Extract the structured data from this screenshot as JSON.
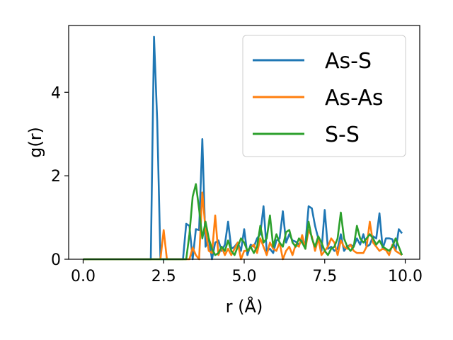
{
  "chart_data": {
    "type": "line",
    "xlabel": "r (Å)",
    "ylabel": "g(r)",
    "xlim": [
      -0.45,
      10.45
    ],
    "ylim": [
      0,
      5.6
    ],
    "xticks": [
      0.0,
      2.5,
      5.0,
      7.5,
      10.0
    ],
    "xtick_labels": [
      "0.0",
      "2.5",
      "5.0",
      "7.5",
      "10.0"
    ],
    "yticks": [
      0,
      2,
      4
    ],
    "ytick_labels": [
      "0",
      "2",
      "4"
    ],
    "grid": false,
    "legend_position": "top-right",
    "series": [
      {
        "name": "As-S",
        "color": "#1f77b4",
        "points": [
          [
            0,
            0
          ],
          [
            2.1,
            0
          ],
          [
            2.2,
            5.33
          ],
          [
            2.3,
            3.3
          ],
          [
            2.4,
            0
          ],
          [
            3.1,
            0
          ],
          [
            3.2,
            0.85
          ],
          [
            3.3,
            0.8
          ],
          [
            3.4,
            0
          ],
          [
            3.5,
            0.72
          ],
          [
            3.6,
            0.7
          ],
          [
            3.7,
            2.88
          ],
          [
            3.8,
            0.3
          ],
          [
            3.9,
            0.5
          ],
          [
            4.0,
            0
          ],
          [
            4.1,
            0.4
          ],
          [
            4.2,
            0.45
          ],
          [
            4.3,
            0.2
          ],
          [
            4.4,
            0.35
          ],
          [
            4.5,
            0.9
          ],
          [
            4.6,
            0.25
          ],
          [
            4.7,
            0.3
          ],
          [
            4.8,
            0.4
          ],
          [
            4.9,
            0.2
          ],
          [
            5.0,
            0.72
          ],
          [
            5.1,
            0.1
          ],
          [
            5.2,
            0.35
          ],
          [
            5.3,
            0.3
          ],
          [
            5.4,
            0.5
          ],
          [
            5.5,
            0.6
          ],
          [
            5.6,
            1.27
          ],
          [
            5.7,
            0.2
          ],
          [
            5.8,
            0.25
          ],
          [
            5.9,
            0.15
          ],
          [
            6.0,
            0.45
          ],
          [
            6.1,
            0.5
          ],
          [
            6.2,
            1.15
          ],
          [
            6.3,
            0.4
          ],
          [
            6.4,
            0.6
          ],
          [
            6.5,
            0.45
          ],
          [
            6.6,
            0.42
          ],
          [
            6.7,
            0.35
          ],
          [
            6.8,
            0.45
          ],
          [
            6.9,
            0.35
          ],
          [
            7.0,
            1.27
          ],
          [
            7.1,
            1.22
          ],
          [
            7.2,
            0.8
          ],
          [
            7.3,
            0.5
          ],
          [
            7.4,
            0.2
          ],
          [
            7.5,
            1.18
          ],
          [
            7.6,
            0.25
          ],
          [
            7.7,
            0.3
          ],
          [
            7.8,
            0.2
          ],
          [
            7.9,
            0.25
          ],
          [
            8.0,
            0.6
          ],
          [
            8.1,
            0.2
          ],
          [
            8.2,
            0.3
          ],
          [
            8.3,
            0.35
          ],
          [
            8.4,
            0.3
          ],
          [
            8.5,
            0.5
          ],
          [
            8.6,
            0.35
          ],
          [
            8.7,
            0.6
          ],
          [
            8.8,
            0.3
          ],
          [
            8.9,
            0.35
          ],
          [
            9.0,
            0.55
          ],
          [
            9.1,
            0.5
          ],
          [
            9.2,
            1.1
          ],
          [
            9.3,
            0.25
          ],
          [
            9.4,
            0.5
          ],
          [
            9.5,
            0.5
          ],
          [
            9.6,
            0.48
          ],
          [
            9.7,
            0.2
          ],
          [
            9.8,
            0.72
          ],
          [
            9.9,
            0.62
          ]
        ]
      },
      {
        "name": "As-As",
        "color": "#ff7f0e",
        "points": [
          [
            0,
            0
          ],
          [
            2.4,
            0
          ],
          [
            2.5,
            0.7
          ],
          [
            2.6,
            0
          ],
          [
            3.3,
            0
          ],
          [
            3.4,
            0.28
          ],
          [
            3.5,
            0.1
          ],
          [
            3.6,
            0
          ],
          [
            3.7,
            1.6
          ],
          [
            3.8,
            0.7
          ],
          [
            3.9,
            0.2
          ],
          [
            4.0,
            0.15
          ],
          [
            4.1,
            1.05
          ],
          [
            4.2,
            0.1
          ],
          [
            4.3,
            0.3
          ],
          [
            4.4,
            0.1
          ],
          [
            4.5,
            0.25
          ],
          [
            4.6,
            0.1
          ],
          [
            4.7,
            0.25
          ],
          [
            4.8,
            0.4
          ],
          [
            4.9,
            0
          ],
          [
            5.0,
            0.2
          ],
          [
            5.1,
            0.2
          ],
          [
            5.2,
            0.28
          ],
          [
            5.3,
            0.35
          ],
          [
            5.4,
            0.15
          ],
          [
            5.5,
            0.5
          ],
          [
            5.6,
            0.3
          ],
          [
            5.7,
            0.1
          ],
          [
            5.8,
            0.4
          ],
          [
            5.9,
            0.25
          ],
          [
            6.0,
            0.2
          ],
          [
            6.1,
            0.4
          ],
          [
            6.2,
            0
          ],
          [
            6.3,
            0.2
          ],
          [
            6.4,
            0.3
          ],
          [
            6.5,
            0.1
          ],
          [
            6.6,
            0.35
          ],
          [
            6.7,
            0.3
          ],
          [
            6.8,
            0.58
          ],
          [
            6.9,
            0.25
          ],
          [
            7.0,
            0.7
          ],
          [
            7.1,
            0.55
          ],
          [
            7.2,
            0.2
          ],
          [
            7.3,
            0.5
          ],
          [
            7.4,
            0.1
          ],
          [
            7.5,
            0.2
          ],
          [
            7.6,
            0.3
          ],
          [
            7.7,
            0.5
          ],
          [
            7.8,
            0.4
          ],
          [
            7.9,
            0.1
          ],
          [
            8.0,
            0.45
          ],
          [
            8.1,
            0.3
          ],
          [
            8.2,
            0.25
          ],
          [
            8.3,
            0.35
          ],
          [
            8.4,
            0.2
          ],
          [
            8.5,
            0.15
          ],
          [
            8.6,
            0.15
          ],
          [
            8.7,
            0.15
          ],
          [
            8.8,
            0.3
          ],
          [
            8.9,
            0.9
          ],
          [
            9.0,
            0.4
          ],
          [
            9.1,
            0.3
          ],
          [
            9.2,
            0.2
          ],
          [
            9.3,
            0.25
          ],
          [
            9.4,
            0.22
          ],
          [
            9.5,
            0.1
          ],
          [
            9.6,
            0.35
          ],
          [
            9.7,
            0.2
          ],
          [
            9.8,
            0.15
          ],
          [
            9.9,
            0.1
          ]
        ]
      },
      {
        "name": "S-S",
        "color": "#2ca02c",
        "points": [
          [
            0,
            0
          ],
          [
            3.2,
            0
          ],
          [
            3.3,
            0.6
          ],
          [
            3.4,
            1.5
          ],
          [
            3.5,
            1.8
          ],
          [
            3.6,
            1.2
          ],
          [
            3.7,
            0.5
          ],
          [
            3.8,
            0.9
          ],
          [
            3.9,
            0.5
          ],
          [
            4.0,
            0.25
          ],
          [
            4.1,
            0.1
          ],
          [
            4.2,
            0.15
          ],
          [
            4.3,
            0.3
          ],
          [
            4.4,
            0.2
          ],
          [
            4.5,
            0.45
          ],
          [
            4.6,
            0.2
          ],
          [
            4.7,
            0.1
          ],
          [
            4.8,
            0.3
          ],
          [
            4.9,
            0.5
          ],
          [
            5.0,
            0.4
          ],
          [
            5.1,
            0.2
          ],
          [
            5.2,
            0.3
          ],
          [
            5.3,
            0.15
          ],
          [
            5.4,
            0.3
          ],
          [
            5.5,
            0.8
          ],
          [
            5.6,
            0.4
          ],
          [
            5.7,
            0.5
          ],
          [
            5.8,
            1.05
          ],
          [
            5.9,
            0.3
          ],
          [
            6.0,
            0.6
          ],
          [
            6.1,
            0.4
          ],
          [
            6.2,
            0.3
          ],
          [
            6.3,
            0.65
          ],
          [
            6.4,
            0.7
          ],
          [
            6.5,
            0.4
          ],
          [
            6.6,
            0.3
          ],
          [
            6.7,
            0.5
          ],
          [
            6.8,
            0.4
          ],
          [
            6.9,
            0.25
          ],
          [
            7.0,
            0.9
          ],
          [
            7.1,
            0.5
          ],
          [
            7.2,
            0.3
          ],
          [
            7.3,
            0.55
          ],
          [
            7.4,
            0.4
          ],
          [
            7.5,
            0.2
          ],
          [
            7.6,
            0.1
          ],
          [
            7.7,
            0.25
          ],
          [
            7.8,
            0.3
          ],
          [
            7.9,
            0.5
          ],
          [
            8.0,
            1.12
          ],
          [
            8.1,
            0.5
          ],
          [
            8.2,
            0.3
          ],
          [
            8.3,
            0.2
          ],
          [
            8.4,
            0.3
          ],
          [
            8.5,
            0.8
          ],
          [
            8.6,
            0.5
          ],
          [
            8.7,
            0.4
          ],
          [
            8.8,
            0.5
          ],
          [
            8.9,
            0.6
          ],
          [
            9.0,
            0.5
          ],
          [
            9.1,
            0.35
          ],
          [
            9.2,
            0.45
          ],
          [
            9.3,
            0.3
          ],
          [
            9.4,
            0.25
          ],
          [
            9.5,
            0.2
          ],
          [
            9.6,
            0.3
          ],
          [
            9.7,
            0.5
          ],
          [
            9.8,
            0.3
          ],
          [
            9.9,
            0.1
          ]
        ]
      }
    ]
  }
}
